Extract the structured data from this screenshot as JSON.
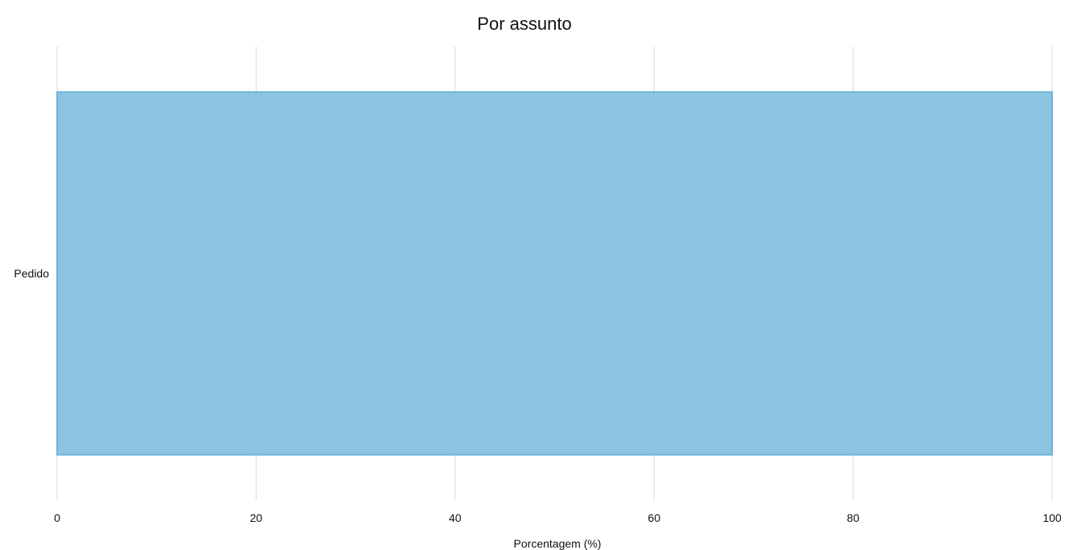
{
  "chart_data": {
    "type": "bar",
    "orientation": "horizontal",
    "title": "Por assunto",
    "xlabel": "Porcentagem (%)",
    "ylabel": "",
    "categories": [
      "Pedido"
    ],
    "values": [
      100
    ],
    "xlim": [
      0,
      100
    ],
    "xticks": [
      0,
      20,
      40,
      60,
      80,
      100
    ],
    "grid": true,
    "bar_color": "#85c2e2",
    "bar_edge_color": "#6fb5d8"
  }
}
